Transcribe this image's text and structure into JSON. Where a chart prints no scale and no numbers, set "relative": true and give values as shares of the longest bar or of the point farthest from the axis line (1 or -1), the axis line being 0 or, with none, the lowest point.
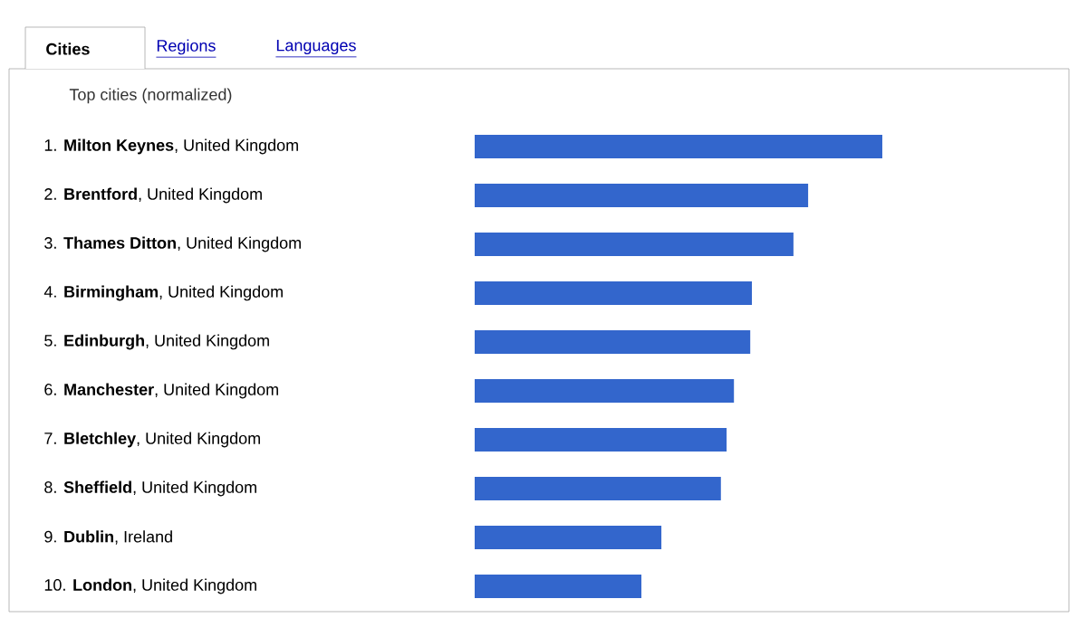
{
  "chart_data": {
    "type": "bar",
    "orientation": "horizontal",
    "relative": true,
    "title": "Top cities (normalized)",
    "annotations": [
      "Cities",
      "Regions",
      "Languages"
    ],
    "categories": [
      "1. **Milton Keynes**, United Kingdom",
      "2. **Brentford**, United Kingdom",
      "3. **Thames Ditton**, United Kingdom",
      "4. **Birmingham**, United Kingdom",
      "5. **Edinburgh**, United Kingdom",
      "6. **Manchester**, United Kingdom",
      "7. **Bletchley**, United Kingdom",
      "8. **Sheffield**, United Kingdom",
      "9. **Dublin**, Ireland",
      "10. **London**, United Kingdom"
    ],
    "values": [
      1,
      0.818,
      0.782,
      0.68,
      0.676,
      0.636,
      0.618,
      0.604,
      0.458,
      0.409
    ],
    "color": "#3366cc"
  }
}
